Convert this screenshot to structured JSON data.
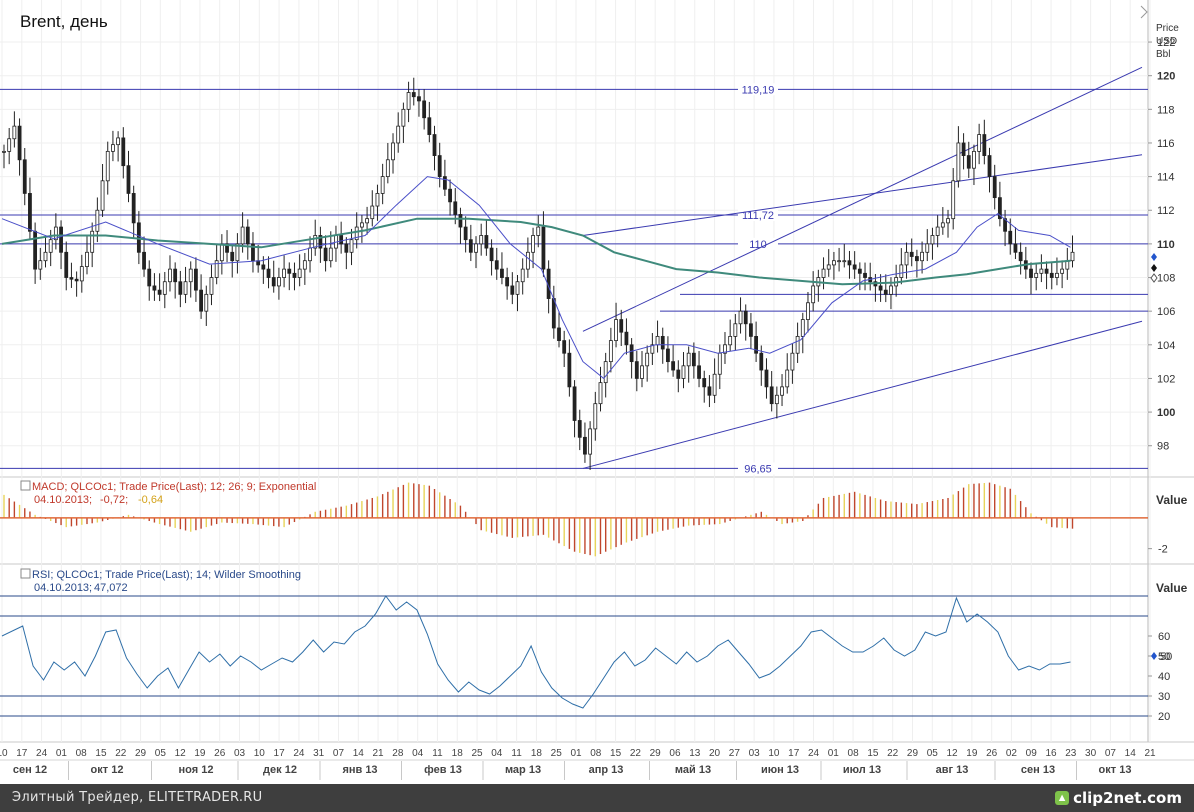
{
  "chart_data": {
    "type": "candlestick",
    "title": "Brent, день",
    "price_axis": {
      "label_lines": [
        "Price",
        "USD",
        "Bbl"
      ],
      "ylim": [
        96.2,
        124.5
      ],
      "ticks": [
        98,
        100,
        102,
        104,
        106,
        108,
        110,
        112,
        114,
        116,
        118,
        120,
        122
      ],
      "bold_ticks": [
        100,
        110,
        120
      ]
    },
    "levels": [
      {
        "value": 119.19,
        "label": "119,19"
      },
      {
        "value": 111.72,
        "label": "111,72"
      },
      {
        "value": 110,
        "label": "110"
      },
      {
        "value": 96.65,
        "label": "96,65"
      },
      {
        "value": 106,
        "label": ""
      },
      {
        "value": 107,
        "label": ""
      }
    ],
    "x_day_labels": [
      "10",
      "17",
      "24",
      "01",
      "08",
      "15",
      "22",
      "29",
      "05",
      "12",
      "19",
      "26",
      "03",
      "10",
      "17",
      "24",
      "31",
      "07",
      "14",
      "21",
      "28",
      "04",
      "11",
      "18",
      "25",
      "04",
      "11",
      "18",
      "25",
      "01",
      "08",
      "15",
      "22",
      "29",
      "06",
      "13",
      "20",
      "27",
      "03",
      "10",
      "17",
      "24",
      "01",
      "08",
      "15",
      "22",
      "29",
      "05",
      "12",
      "19",
      "26",
      "02",
      "09",
      "16",
      "23",
      "30",
      "07",
      "14",
      "21"
    ],
    "x_month_labels": [
      "сен 12",
      "окт 12",
      "ноя 12",
      "дек 12",
      "янв 13",
      "фев 13",
      "мар 13",
      "апр 13",
      "май 13",
      "июн 13",
      "июл 13",
      "авг 13",
      "сен 13",
      "окт 13"
    ],
    "series": [
      {
        "name": "MA short",
        "color": "#4a4fc8"
      },
      {
        "name": "MA long",
        "color": "#3f8a7c"
      }
    ],
    "price_path": [
      [
        0,
        115.5
      ],
      [
        2,
        117
      ],
      [
        4,
        113
      ],
      [
        6,
        108.5
      ],
      [
        8,
        109.5
      ],
      [
        10,
        111
      ],
      [
        12,
        108
      ],
      [
        14,
        107.8
      ],
      [
        16,
        109.5
      ],
      [
        18,
        112
      ],
      [
        20,
        115.5
      ],
      [
        22,
        116.3
      ],
      [
        24,
        113
      ],
      [
        26,
        109.5
      ],
      [
        28,
        107.5
      ],
      [
        30,
        107
      ],
      [
        32,
        108.5
      ],
      [
        34,
        107
      ],
      [
        36,
        108.5
      ],
      [
        38,
        106
      ],
      [
        40,
        108
      ],
      [
        42,
        110
      ],
      [
        44,
        109
      ],
      [
        46,
        111
      ],
      [
        48,
        109
      ],
      [
        50,
        108.5
      ],
      [
        52,
        107.5
      ],
      [
        54,
        108.5
      ],
      [
        56,
        108
      ],
      [
        58,
        109
      ],
      [
        60,
        110.5
      ],
      [
        62,
        109
      ],
      [
        64,
        110.5
      ],
      [
        66,
        109.5
      ],
      [
        68,
        111
      ],
      [
        70,
        111.5
      ],
      [
        72,
        113
      ],
      [
        74,
        115
      ],
      [
        76,
        117
      ],
      [
        78,
        119
      ],
      [
        80,
        118.5
      ],
      [
        82,
        116.5
      ],
      [
        84,
        114
      ],
      [
        86,
        112.5
      ],
      [
        88,
        111
      ],
      [
        90,
        109.5
      ],
      [
        92,
        110.5
      ],
      [
        94,
        109
      ],
      [
        96,
        108
      ],
      [
        98,
        107
      ],
      [
        100,
        108.5
      ],
      [
        102,
        110.5
      ],
      [
        103,
        111
      ],
      [
        104,
        108.5
      ],
      [
        106,
        105
      ],
      [
        108,
        103.5
      ],
      [
        110,
        99.5
      ],
      [
        112,
        97.5
      ],
      [
        114,
        100.5
      ],
      [
        116,
        103
      ],
      [
        118,
        105.5
      ],
      [
        120,
        104
      ],
      [
        122,
        102
      ],
      [
        124,
        103.5
      ],
      [
        126,
        104.5
      ],
      [
        128,
        103
      ],
      [
        130,
        102
      ],
      [
        132,
        103.5
      ],
      [
        134,
        102
      ],
      [
        136,
        101
      ],
      [
        138,
        103.5
      ],
      [
        140,
        104.5
      ],
      [
        142,
        106
      ],
      [
        144,
        104.5
      ],
      [
        146,
        102.5
      ],
      [
        148,
        100.5
      ],
      [
        150,
        101.5
      ],
      [
        152,
        103.5
      ],
      [
        154,
        105.5
      ],
      [
        156,
        107.5
      ],
      [
        158,
        108.5
      ],
      [
        160,
        109
      ],
      [
        162,
        109
      ],
      [
        164,
        108.5
      ],
      [
        166,
        108
      ],
      [
        168,
        107.5
      ],
      [
        170,
        107
      ],
      [
        172,
        108
      ],
      [
        174,
        109.5
      ],
      [
        176,
        109
      ],
      [
        178,
        110
      ],
      [
        180,
        111
      ],
      [
        182,
        111.5
      ],
      [
        184,
        116
      ],
      [
        186,
        114.5
      ],
      [
        188,
        116.5
      ],
      [
        190,
        114
      ],
      [
        192,
        111.5
      ],
      [
        194,
        110
      ],
      [
        196,
        109
      ],
      [
        198,
        108
      ],
      [
        200,
        108.5
      ],
      [
        202,
        108
      ],
      [
        204,
        108.5
      ],
      [
        206,
        109.5
      ]
    ],
    "ma_short": [
      [
        0,
        111.5
      ],
      [
        10,
        110.3
      ],
      [
        20,
        111.3
      ],
      [
        30,
        110
      ],
      [
        40,
        108.8
      ],
      [
        50,
        109
      ],
      [
        60,
        109.8
      ],
      [
        70,
        110.5
      ],
      [
        76,
        112.3
      ],
      [
        82,
        114
      ],
      [
        86,
        113.8
      ],
      [
        92,
        112.3
      ],
      [
        98,
        110
      ],
      [
        104,
        108.5
      ],
      [
        108,
        105.5
      ],
      [
        112,
        103
      ],
      [
        116,
        102
      ],
      [
        120,
        103.5
      ],
      [
        126,
        104
      ],
      [
        132,
        104
      ],
      [
        138,
        103.5
      ],
      [
        144,
        103.8
      ],
      [
        148,
        103.5
      ],
      [
        154,
        104.3
      ],
      [
        160,
        106.5
      ],
      [
        166,
        107.8
      ],
      [
        172,
        108.2
      ],
      [
        178,
        108.5
      ],
      [
        184,
        109.5
      ],
      [
        188,
        111
      ],
      [
        192,
        111.8
      ],
      [
        196,
        110.8
      ],
      [
        202,
        110.5
      ],
      [
        206,
        109.8
      ]
    ],
    "ma_long": [
      [
        0,
        110
      ],
      [
        10,
        110.5
      ],
      [
        20,
        110.5
      ],
      [
        30,
        110.2
      ],
      [
        40,
        110
      ],
      [
        50,
        109.8
      ],
      [
        60,
        110.3
      ],
      [
        70,
        110.8
      ],
      [
        80,
        111.5
      ],
      [
        90,
        111.5
      ],
      [
        100,
        111.3
      ],
      [
        106,
        111
      ],
      [
        112,
        110.5
      ],
      [
        118,
        109.5
      ],
      [
        124,
        109
      ],
      [
        130,
        108.5
      ],
      [
        138,
        108.3
      ],
      [
        146,
        108
      ],
      [
        154,
        107.8
      ],
      [
        162,
        107.6
      ],
      [
        172,
        107.7
      ],
      [
        180,
        108
      ],
      [
        186,
        108.2
      ],
      [
        192,
        108.5
      ],
      [
        198,
        108.8
      ],
      [
        206,
        109
      ]
    ],
    "channel_lines": [
      {
        "from": [
          112,
          96.65
        ],
        "to": [
          214,
          105.4
        ]
      },
      {
        "from": [
          112,
          104.8
        ],
        "to": [
          214,
          120.5
        ]
      },
      {
        "from": [
          112,
          110.5
        ],
        "to": [
          214,
          115.3
        ]
      }
    ],
    "macd": {
      "label": "MACD; QLCOc1; Trade Price(Last);  12; 26; 9; Exponential",
      "date": "04.10.2013;",
      "value1": "-0,72;",
      "value2": "-0,64",
      "ylim": [
        -3,
        2.6
      ],
      "tick_label": "-2",
      "tick_value": -2,
      "axis_title": "Value",
      "path": [
        [
          0,
          1.5
        ],
        [
          6,
          0.2
        ],
        [
          12,
          -0.6
        ],
        [
          18,
          -0.3
        ],
        [
          24,
          0.2
        ],
        [
          30,
          -0.4
        ],
        [
          36,
          -0.9
        ],
        [
          42,
          -0.3
        ],
        [
          48,
          -0.4
        ],
        [
          54,
          -0.6
        ],
        [
          60,
          0.4
        ],
        [
          66,
          0.8
        ],
        [
          72,
          1.4
        ],
        [
          78,
          2.3
        ],
        [
          82,
          2.1
        ],
        [
          88,
          0.8
        ],
        [
          92,
          -0.8
        ],
        [
          98,
          -1.3
        ],
        [
          104,
          -1.1
        ],
        [
          110,
          -2.2
        ],
        [
          114,
          -2.5
        ],
        [
          120,
          -1.6
        ],
        [
          126,
          -0.9
        ],
        [
          132,
          -0.5
        ],
        [
          138,
          -0.4
        ],
        [
          146,
          0.4
        ],
        [
          150,
          -0.4
        ],
        [
          154,
          -0.2
        ],
        [
          158,
          1.3
        ],
        [
          164,
          1.7
        ],
        [
          170,
          1.1
        ],
        [
          176,
          0.9
        ],
        [
          182,
          1.3
        ],
        [
          186,
          2.2
        ],
        [
          190,
          2.3
        ],
        [
          194,
          1.9
        ],
        [
          198,
          0.3
        ],
        [
          202,
          -0.6
        ],
        [
          206,
          -0.7
        ]
      ]
    },
    "rsi": {
      "label": "RSI; QLCOc1; Trade Price(Last);  14; Wilder Smoothing",
      "date": "04.10.2013;",
      "value": "47,072",
      "ylim": [
        7,
        95
      ],
      "ticks": [
        20,
        30,
        40,
        50,
        60
      ],
      "levels": [
        20,
        30,
        70,
        80
      ],
      "axis_title": "Value",
      "marker_label": "50",
      "path": [
        [
          0,
          60
        ],
        [
          4,
          65
        ],
        [
          6,
          45
        ],
        [
          8,
          38
        ],
        [
          10,
          47
        ],
        [
          12,
          43
        ],
        [
          14,
          47
        ],
        [
          16,
          40
        ],
        [
          18,
          50
        ],
        [
          20,
          62
        ],
        [
          22,
          63
        ],
        [
          24,
          49
        ],
        [
          26,
          41
        ],
        [
          28,
          34
        ],
        [
          30,
          40
        ],
        [
          32,
          44
        ],
        [
          34,
          34
        ],
        [
          36,
          43
        ],
        [
          38,
          52
        ],
        [
          40,
          47
        ],
        [
          42,
          51
        ],
        [
          44,
          45
        ],
        [
          46,
          50
        ],
        [
          48,
          47
        ],
        [
          50,
          43
        ],
        [
          52,
          46
        ],
        [
          54,
          49
        ],
        [
          56,
          47
        ],
        [
          58,
          52
        ],
        [
          60,
          58
        ],
        [
          62,
          52
        ],
        [
          64,
          57
        ],
        [
          66,
          56
        ],
        [
          68,
          62
        ],
        [
          70,
          65
        ],
        [
          72,
          71
        ],
        [
          74,
          80
        ],
        [
          76,
          73
        ],
        [
          78,
          77
        ],
        [
          80,
          73
        ],
        [
          82,
          61
        ],
        [
          84,
          46
        ],
        [
          86,
          38
        ],
        [
          88,
          32
        ],
        [
          90,
          37
        ],
        [
          92,
          33
        ],
        [
          94,
          31
        ],
        [
          96,
          35
        ],
        [
          98,
          40
        ],
        [
          100,
          45
        ],
        [
          102,
          55
        ],
        [
          104,
          42
        ],
        [
          106,
          34
        ],
        [
          108,
          29
        ],
        [
          110,
          26
        ],
        [
          112,
          24
        ],
        [
          114,
          31
        ],
        [
          116,
          39
        ],
        [
          118,
          47
        ],
        [
          120,
          52
        ],
        [
          122,
          45
        ],
        [
          124,
          48
        ],
        [
          126,
          54
        ],
        [
          128,
          50
        ],
        [
          130,
          46
        ],
        [
          132,
          52
        ],
        [
          134,
          47
        ],
        [
          136,
          50
        ],
        [
          138,
          55
        ],
        [
          140,
          58
        ],
        [
          142,
          52
        ],
        [
          144,
          46
        ],
        [
          146,
          39
        ],
        [
          148,
          41
        ],
        [
          150,
          45
        ],
        [
          152,
          50
        ],
        [
          154,
          55
        ],
        [
          156,
          62
        ],
        [
          158,
          63
        ],
        [
          160,
          59
        ],
        [
          162,
          55
        ],
        [
          164,
          52
        ],
        [
          166,
          52
        ],
        [
          168,
          55
        ],
        [
          170,
          59
        ],
        [
          172,
          53
        ],
        [
          174,
          50
        ],
        [
          176,
          53
        ],
        [
          178,
          62
        ],
        [
          180,
          60
        ],
        [
          182,
          62
        ],
        [
          184,
          79
        ],
        [
          186,
          67
        ],
        [
          188,
          71
        ],
        [
          190,
          67
        ],
        [
          192,
          62
        ],
        [
          194,
          50
        ],
        [
          196,
          43
        ],
        [
          198,
          45
        ],
        [
          200,
          43
        ],
        [
          202,
          46
        ],
        [
          204,
          46
        ],
        [
          206,
          47
        ]
      ]
    }
  },
  "footer": {
    "source_text": "Элитный Трейдер, ELITETRADER.RU",
    "logo_text": "clip2net.com"
  }
}
